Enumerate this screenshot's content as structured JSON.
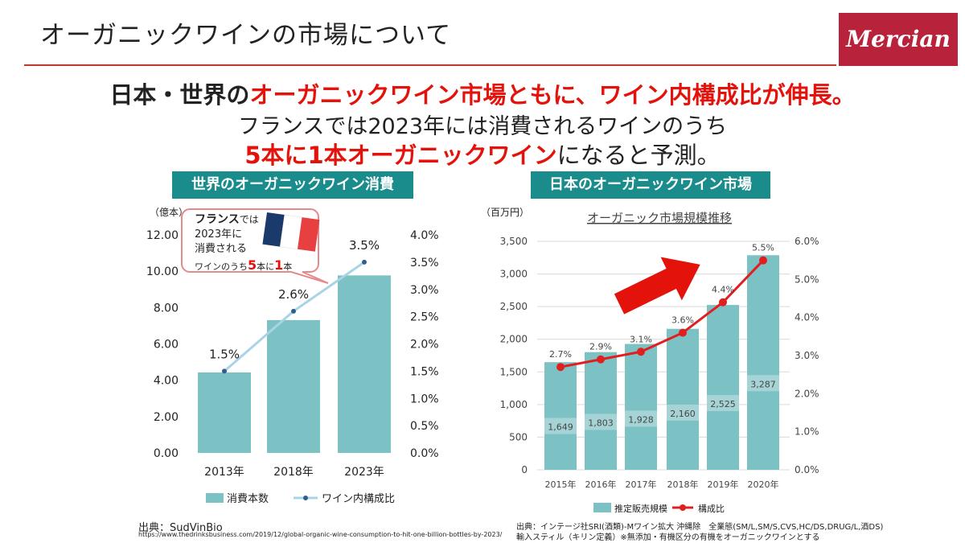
{
  "header": {
    "title": "オーガニックワインの市場について",
    "logo_text": "Mercian"
  },
  "headline": {
    "line1_part1": "日本・世界の",
    "line1_part2": "オーガニックワイン市場ともに、ワイン内構成比が伸長。",
    "line2": "フランスでは2023年には消費されるワインのうち",
    "line3_part1": "5本に1本オーガニックワイン",
    "line3_part2": "になると予測。"
  },
  "left_panel": {
    "banner": "世界のオーガニックワイン消費",
    "unit": "（億本）",
    "callout": {
      "france": "フランス",
      "de": "では",
      "line2": "2023年に",
      "line3": "消費される",
      "line4_a": "ワインのうち",
      "five": "5",
      "hon_ni": "本に",
      "one": "1",
      "hon": "本"
    },
    "source_label": "出典：SudVinBio",
    "source_url": "https://www.thedrinksbusiness.com/2019/12/global-organic-wine-consumption-to-hit-one-billion-bottles-by-2023/"
  },
  "right_panel": {
    "banner": "日本のオーガニックワイン市場",
    "unit": "（百万円）",
    "subtitle": "オーガニック市場規模推移",
    "source_line1": "出典：インテージ社SRI(酒類)-Mワイン拡大 沖縄除　全業態(SM/L,SM/S,CVS,HC/DS,DRUG/L,酒DS)",
    "source_line2": "輸入スティル（キリン定義）※無添加・有機区分の有機をオーガニックワインとする"
  },
  "colors": {
    "accent_red": "#e3120b",
    "teal_bar": "#7cc1c4",
    "banner_teal": "#1b8c8c",
    "logo_red": "#b8233b",
    "line_light_blue": "#a9d3e6",
    "line_red": "#e02020"
  },
  "chart_data": [
    {
      "type": "bar",
      "categories": [
        "2013年",
        "2018年",
        "2023年"
      ],
      "series": [
        {
          "name": "消費本数",
          "type": "bar",
          "axis": "left",
          "values": [
            4.43,
            7.31,
            9.77
          ]
        },
        {
          "name": "ワイン内構成比",
          "type": "line",
          "axis": "right",
          "values": [
            1.5,
            2.6,
            3.5
          ],
          "labels": [
            "1.5%",
            "2.6%",
            "3.5%"
          ]
        }
      ],
      "yticks_left": [
        "0.00",
        "2.00",
        "4.00",
        "6.00",
        "8.00",
        "10.00",
        "12.00"
      ],
      "yticks_right": [
        "0.0%",
        "0.5%",
        "1.0%",
        "1.5%",
        "2.0%",
        "2.5%",
        "3.0%",
        "3.5%",
        "4.0%"
      ],
      "ylim_left": [
        0,
        12
      ],
      "ylim_right": [
        0,
        4
      ],
      "legend": "bottom",
      "grid": false
    },
    {
      "type": "bar",
      "categories": [
        "2015年",
        "2016年",
        "2017年",
        "2018年",
        "2019年",
        "2020年"
      ],
      "series": [
        {
          "name": "推定販売規模",
          "type": "bar",
          "axis": "left",
          "values": [
            1649,
            1803,
            1928,
            2160,
            2525,
            3287
          ],
          "labels": [
            "1,649",
            "1,803",
            "1,928",
            "2,160",
            "2,525",
            "3,287"
          ]
        },
        {
          "name": "構成比",
          "type": "line",
          "axis": "right",
          "values": [
            2.7,
            2.9,
            3.1,
            3.6,
            4.4,
            5.5
          ],
          "labels": [
            "2.7%",
            "2.9%",
            "3.1%",
            "3.6%",
            "4.4%",
            "5.5%"
          ]
        }
      ],
      "yticks_left": [
        "0",
        "500",
        "1,000",
        "1,500",
        "2,000",
        "2,500",
        "3,000",
        "3,500"
      ],
      "yticks_right": [
        "0.0%",
        "1.0%",
        "2.0%",
        "3.0%",
        "4.0%",
        "5.0%",
        "6.0%"
      ],
      "ylim_left": [
        0,
        3500
      ],
      "ylim_right": [
        0,
        6
      ],
      "legend": "bottom",
      "grid": true
    }
  ]
}
